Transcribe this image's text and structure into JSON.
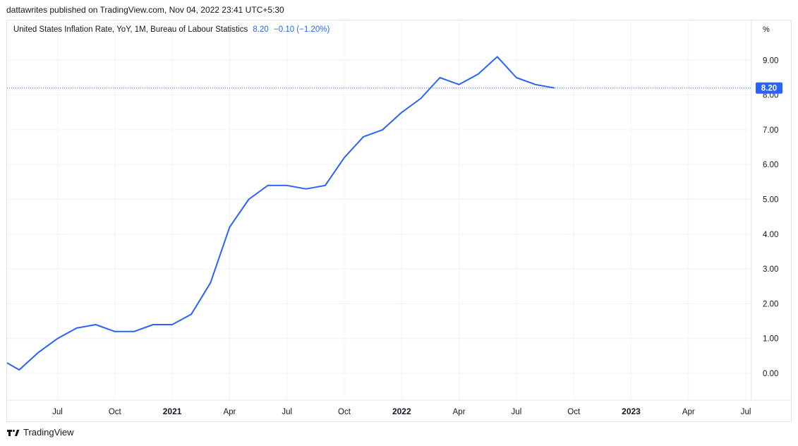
{
  "header": {
    "published": "dattawrites published on TradingView.com, Nov 04, 2022 23:41 UTC+5:30"
  },
  "legend": {
    "title": "United States Inflation Rate, YoY, 1M, Bureau of Labour Statistics",
    "value": "8.20",
    "change": "−0.10 (−1.20%)"
  },
  "brand": {
    "name": "TradingView"
  },
  "colors": {
    "line": "#2962ff",
    "grid": "#f0f3fa",
    "axis_text": "#131722",
    "price_label_bg": "#2962ff"
  },
  "chart_data": {
    "type": "line",
    "title": "United States Inflation Rate, YoY, 1M, Bureau of Labour Statistics",
    "unit": "%",
    "ylim": [
      -0.75,
      9.75
    ],
    "yticks": [
      "0.00",
      "1.00",
      "2.00",
      "3.00",
      "4.00",
      "5.00",
      "6.00",
      "7.00",
      "8.00",
      "9.00"
    ],
    "x_tick_labels": [
      "Jul",
      "Oct",
      "2021",
      "Apr",
      "Jul",
      "Oct",
      "2022",
      "Apr",
      "Jul",
      "Oct",
      "2023",
      "Apr",
      "Jul"
    ],
    "last_price_label": "8.20",
    "grid": true,
    "series": [
      {
        "x": [
          "2020-04",
          "2020-05",
          "2020-06",
          "2020-07",
          "2020-08",
          "2020-09",
          "2020-10",
          "2020-11",
          "2020-12",
          "2021-01",
          "2021-02",
          "2021-03",
          "2021-04",
          "2021-05",
          "2021-06",
          "2021-07",
          "2021-08",
          "2021-09",
          "2021-10",
          "2021-11",
          "2021-12",
          "2022-01",
          "2022-02",
          "2022-03",
          "2022-04",
          "2022-05",
          "2022-06",
          "2022-07",
          "2022-08",
          "2022-09"
        ],
        "values": [
          0.3,
          0.1,
          0.6,
          1.0,
          1.3,
          1.4,
          1.2,
          1.2,
          1.4,
          1.4,
          1.7,
          2.6,
          4.2,
          5.0,
          5.4,
          5.4,
          5.3,
          5.4,
          6.2,
          6.8,
          7.0,
          7.5,
          7.9,
          8.5,
          8.3,
          8.6,
          9.1,
          8.5,
          8.3,
          8.2
        ]
      }
    ]
  }
}
